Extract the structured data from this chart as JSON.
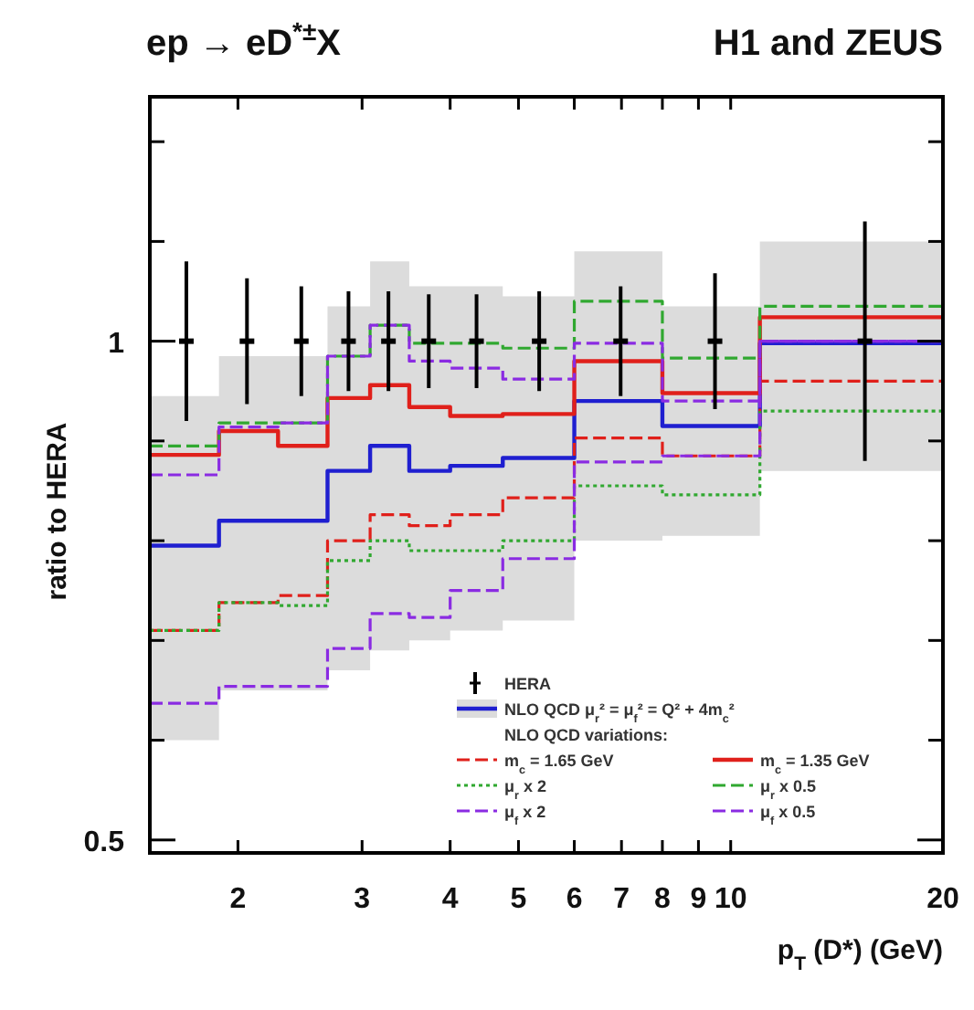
{
  "chart_data": {
    "type": "step",
    "title": "ep → eD$^{*±}$X",
    "subtitle": "H1 and ZEUS",
    "xlabel": "p$_{T}$ (D*) (GeV)",
    "ylabel": "ratio to HERA",
    "annotations": [
      "NLO QCD variations:"
    ],
    "log": "x",
    "xlim": [
      1.5,
      20
    ],
    "ylim": [
      0.487,
      1.245
    ],
    "xticks": [
      2,
      3,
      4,
      5,
      6,
      7,
      8,
      9,
      10,
      20
    ],
    "yticks": [
      0.5,
      {
        "value": 0.6,
        "label": null
      },
      {
        "value": 0.7,
        "label": null
      },
      {
        "value": 0.8,
        "label": null
      },
      {
        "value": 0.9,
        "label": null
      },
      1,
      {
        "value": 1.1,
        "label": null
      },
      {
        "value": 1.2,
        "label": null
      }
    ],
    "grid": false,
    "legend": "bottom right",
    "series": [
      {
        "name": "HERA",
        "type": "scatter",
        "color": "#000000",
        "x": [
          1.69,
          2.06,
          2.46,
          2.87,
          3.27,
          3.73,
          4.36,
          5.35,
          6.98,
          9.5,
          15.5
        ],
        "values": [
          1,
          1,
          1,
          1,
          1,
          1,
          1,
          1,
          1,
          1,
          1
        ],
        "errors": [
          0.08,
          0.063,
          0.055,
          0.05,
          0.05,
          0.047,
          0.047,
          0.05,
          0.055,
          0.068,
          0.12
        ]
      },
      {
        "name": "NLO QCD μ$_{r}$² = μ$_{f}$² = Q² + 4m$_{c}$²",
        "color": "#1f1fd0",
        "line_style": "solid",
        "x": [
          1.5,
          1.88,
          2.28,
          2.68,
          3.08,
          3.5,
          4.0,
          4.75,
          6.0,
          8.0,
          11.0,
          20.0
        ],
        "values": [
          0.795,
          0.82,
          0.82,
          0.87,
          0.895,
          0.87,
          0.875,
          0.883,
          0.94,
          0.915,
          0.998,
          0.998
        ],
        "lower": [
          0.6,
          0.65,
          0.65,
          0.67,
          0.69,
          0.7,
          0.71,
          0.72,
          0.8,
          0.805,
          0.87,
          0.87
        ],
        "upper": [
          0.945,
          0.985,
          0.985,
          1.035,
          1.08,
          1.055,
          1.055,
          1.045,
          1.09,
          1.035,
          1.1,
          1.1
        ]
      },
      {
        "name": "m$_{c}$ = 1.65 GeV",
        "color": "#e0201b",
        "line_style": "dashed",
        "x": [
          1.5,
          1.88,
          2.28,
          2.68,
          3.08,
          3.5,
          4.0,
          4.75,
          6.0,
          8.0,
          11.0,
          20.0
        ],
        "values": [
          0.71,
          0.738,
          0.745,
          0.8,
          0.826,
          0.815,
          0.826,
          0.843,
          0.903,
          0.885,
          0.96,
          0.96
        ]
      },
      {
        "name": "m$_{c}$ = 1.35 GeV",
        "color": "#e0201b",
        "line_style": "solid",
        "x": [
          1.5,
          1.88,
          2.28,
          2.68,
          3.08,
          3.5,
          4.0,
          4.75,
          6.0,
          8.0,
          11.0,
          20.0
        ],
        "values": [
          0.886,
          0.91,
          0.895,
          0.943,
          0.956,
          0.934,
          0.925,
          0.927,
          0.98,
          0.948,
          1.024,
          1.024
        ]
      },
      {
        "name": "μ$_{r}$ x 2",
        "color": "#30a830",
        "line_style": "dotted",
        "x": [
          1.5,
          1.88,
          2.28,
          2.68,
          3.08,
          3.5,
          4.0,
          4.75,
          6.0,
          8.0,
          11.0,
          20.0
        ],
        "values": [
          0.71,
          0.738,
          0.735,
          0.78,
          0.8,
          0.79,
          0.79,
          0.8,
          0.855,
          0.846,
          0.93,
          0.93
        ]
      },
      {
        "name": "μ$_{r}$ x 0.5",
        "color": "#30a830",
        "line_style": "dashed",
        "x": [
          1.5,
          1.88,
          2.28,
          2.68,
          3.08,
          3.5,
          4.0,
          4.75,
          6.0,
          8.0,
          11.0,
          20.0
        ],
        "values": [
          0.895,
          0.918,
          0.918,
          0.985,
          1.016,
          0.998,
          0.998,
          0.993,
          1.04,
          0.983,
          1.035,
          1.035
        ]
      },
      {
        "name": "μ$_{f}$ x 2",
        "color": "#8a2be2",
        "line_style": "dashed",
        "x": [
          1.5,
          1.88,
          2.28,
          2.68,
          3.08,
          3.5,
          4.0,
          4.75,
          6.0,
          8.0,
          11.0,
          20.0
        ],
        "values": [
          0.866,
          0.914,
          0.918,
          0.985,
          1.016,
          0.98,
          0.973,
          0.962,
          0.998,
          0.94,
          1.0,
          1.0
        ]
      },
      {
        "name": "μ$_{f}$ x 0.5",
        "color": "#8a2be2",
        "line_style": "dashed",
        "x": [
          1.5,
          1.88,
          2.28,
          2.68,
          3.08,
          3.5,
          4.0,
          4.75,
          6.0,
          8.0,
          11.0,
          20.0
        ],
        "values": [
          0.637,
          0.654,
          0.654,
          0.692,
          0.727,
          0.723,
          0.75,
          0.782,
          0.879,
          0.885,
          1.0,
          1.0
        ]
      }
    ]
  }
}
